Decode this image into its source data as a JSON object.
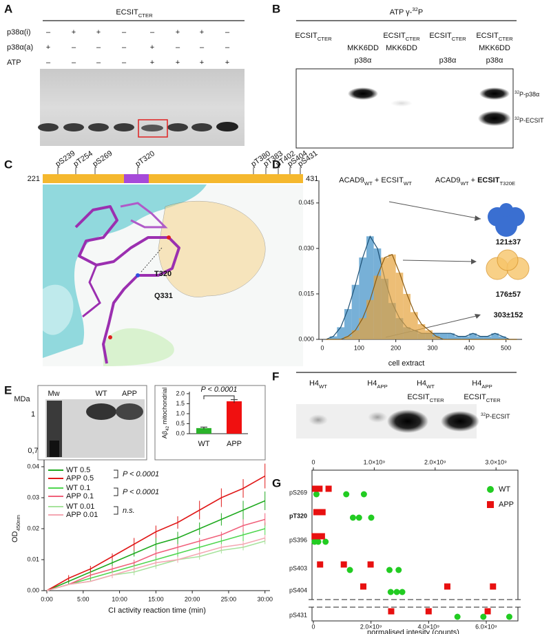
{
  "panel_a": {
    "label": "A",
    "title": {
      "text": "ECSIT",
      "sub": "CTER"
    },
    "rows": [
      {
        "name": "p38α(i)",
        "signs": [
          "–",
          "+",
          "+",
          "–",
          "–",
          "+",
          "+",
          "–"
        ]
      },
      {
        "name": "p38α(a)",
        "signs": [
          "+",
          "–",
          "–",
          "–",
          "+",
          "–",
          "–",
          "–"
        ]
      },
      {
        "name": "ATP",
        "signs": [
          "–",
          "–",
          "–",
          "–",
          "+",
          "+",
          "+",
          "+"
        ]
      }
    ]
  },
  "panel_b": {
    "label": "B",
    "title": {
      "text": "ATP γ-",
      "sup": "32",
      "tail": "P"
    },
    "lanes": [
      [
        {
          "text": "ECSIT",
          "sub": "CTER"
        },
        null,
        null
      ],
      [
        null,
        "MKK6DD",
        "p38α"
      ],
      [
        {
          "text": "ECSIT",
          "sub": "CTER"
        },
        "MKK6DD",
        null
      ],
      [
        {
          "text": "ECSIT",
          "sub": "CTER"
        },
        null,
        "p38α"
      ],
      [
        {
          "text": "ECSIT",
          "sub": "CTER"
        },
        "MKK6DD",
        "p38α"
      ]
    ],
    "band_labels": [
      {
        "sup": "32",
        "text": "P-p38α"
      },
      {
        "sup": "32",
        "text": "P-ECSIT"
      }
    ]
  },
  "panel_c": {
    "label": "C",
    "start": "221",
    "end": "431",
    "sites": [
      {
        "name": "pS239",
        "color": "#111111"
      },
      {
        "name": "pT254",
        "color": "#111111"
      },
      {
        "name": "pS269",
        "color": "#111111"
      },
      {
        "name": "pT320",
        "color": "#2aa04a"
      },
      {
        "name": "pT380",
        "color": "#111111"
      },
      {
        "name": "pT383",
        "color": "#111111"
      },
      {
        "name": "pT402",
        "color": "#111111"
      },
      {
        "name": "pS404",
        "color": "#111111"
      },
      {
        "name": "pS431",
        "color": "#111111"
      }
    ],
    "residues": [
      {
        "text": "T320",
        "color": "#2aa04a"
      },
      {
        "text": "Q331",
        "color": "#6a3fd0"
      }
    ]
  },
  "panel_d": {
    "label": "D"
  },
  "panel_e": {
    "label": "E",
    "gel_unit": "MDa",
    "gel_marks": [
      "1",
      "0,7"
    ],
    "gel_lanes": [
      "Mw",
      "WT",
      "APP"
    ]
  },
  "panel_f": {
    "label": "F",
    "title": "cell extract",
    "lanes": [
      [
        {
          "text": "H4",
          "sub": "WT"
        },
        null
      ],
      [
        {
          "text": "H4",
          "sub": "APP"
        },
        null
      ],
      [
        {
          "text": "H4",
          "sub": "WT"
        },
        {
          "text": "ECSIT",
          "sub": "CTER"
        }
      ],
      [
        {
          "text": "H4",
          "sub": "APP"
        },
        {
          "text": "ECSIT",
          "sub": "CTER"
        }
      ]
    ],
    "band_label": {
      "sup": "32",
      "text": "P-ECSIT"
    }
  },
  "panel_g": {
    "label": "G"
  },
  "chart_data": [
    {
      "type": "histogram",
      "bins": [
        0,
        20,
        40,
        60,
        80,
        100,
        120,
        140,
        160,
        180,
        200,
        220,
        240,
        260,
        280,
        300,
        320,
        340,
        360,
        380,
        400,
        420,
        440,
        460,
        480,
        500,
        520,
        540
      ],
      "series": [
        {
          "name": {
            "text": "ACAD9",
            "sub": "WT",
            "mid": " + ",
            "bold": "ECSIT",
            "sub2": "T320E"
          },
          "color": "#3d8ec6",
          "values": [
            0,
            0.001,
            0.004,
            0.01,
            0.018,
            0.027,
            0.034,
            0.03,
            0.02,
            0.012,
            0.007,
            0.004,
            0.003,
            0.002,
            0.002,
            0.002,
            0.002,
            0.002,
            0.001,
            0.001,
            0.002,
            0.001,
            0.001,
            0.002,
            0.001,
            0,
            0
          ]
        },
        {
          "name": {
            "text": "ACAD9",
            "sub": "WT",
            "mid": " + ECSIT",
            "sub2": "WT"
          },
          "color": "#e6a23c",
          "values": [
            0,
            0,
            0,
            0.001,
            0.003,
            0.007,
            0.013,
            0.021,
            0.027,
            0.028,
            0.022,
            0.015,
            0.009,
            0.005,
            0.003,
            0.001,
            0,
            0,
            0,
            0,
            0,
            0,
            0,
            0,
            0,
            0,
            0
          ]
        }
      ],
      "xlim": [
        0,
        540
      ],
      "xticks": [
        0,
        100,
        200,
        300,
        400,
        500
      ],
      "ylim": [
        0,
        0.052
      ],
      "yticks": [
        {
          "value": 0,
          "label": "0.000"
        },
        0.015,
        {
          "value": 0.03,
          "label": "0.030"
        },
        0.045
      ],
      "annotations": [
        {
          "text": "121±37",
          "color": "#2e6fb5"
        },
        {
          "text": "176±57",
          "color": "#e0a030"
        },
        {
          "text": "303±152",
          "color": "#2e6fb5"
        }
      ]
    },
    {
      "type": "bar",
      "categories": [
        "WT",
        "APP"
      ],
      "values": [
        0.28,
        1.62
      ],
      "errors": [
        0.05,
        0.08
      ],
      "colors": [
        "#2bb32b",
        "#f01010"
      ],
      "ylim": [
        0,
        2.1
      ],
      "yticks": [
        {
          "value": 0,
          "label": "0.0"
        },
        0.5,
        {
          "value": 1,
          "label": "1.0"
        },
        1.5,
        {
          "value": 2,
          "label": "2.0"
        }
      ],
      "ylabel": {
        "text": "Aβ",
        "sub": "42",
        "tail": " mitochondrial"
      },
      "annotation": "P < 0.0001"
    },
    {
      "type": "line",
      "x": [
        0,
        3,
        6,
        9,
        12,
        15,
        18,
        21,
        24,
        27,
        30
      ],
      "series": [
        {
          "name": "WT 0.5",
          "color": "#1faa1f",
          "values": [
            0,
            0.003,
            0.006,
            0.009,
            0.012,
            0.015,
            0.017,
            0.02,
            0.023,
            0.026,
            0.029
          ],
          "errors": [
            0,
            0.001,
            0.001,
            0.001,
            0.001,
            0.002,
            0.002,
            0.002,
            0.002,
            0.003,
            0.003
          ]
        },
        {
          "name": "APP 0.5",
          "color": "#e01818",
          "values": [
            0,
            0.004,
            0.007,
            0.011,
            0.015,
            0.019,
            0.022,
            0.026,
            0.03,
            0.033,
            0.037
          ],
          "errors": [
            0,
            0.001,
            0.001,
            0.001,
            0.002,
            0.002,
            0.002,
            0.003,
            0.003,
            0.003,
            0.004
          ]
        },
        {
          "name": "WT 0.1",
          "color": "#4fd64f",
          "values": [
            0,
            0.002,
            0.004,
            0.006,
            0.008,
            0.01,
            0.012,
            0.014,
            0.016,
            0.018,
            0.02
          ],
          "errors": [
            0,
            0,
            0.001,
            0.001,
            0.001,
            0.001,
            0.001,
            0.001,
            0.001,
            0.002,
            0.002
          ]
        },
        {
          "name": "APP 0.1",
          "color": "#f0607a",
          "values": [
            0,
            0.002,
            0.005,
            0.007,
            0.009,
            0.012,
            0.014,
            0.016,
            0.018,
            0.021,
            0.023
          ],
          "errors": [
            0,
            0,
            0.001,
            0.001,
            0.001,
            0.001,
            0.001,
            0.001,
            0.001,
            0.002,
            0.002
          ]
        },
        {
          "name": "WT 0.01",
          "color": "#a6e39c",
          "values": [
            0,
            0.002,
            0.003,
            0.005,
            0.006,
            0.008,
            0.01,
            0.011,
            0.013,
            0.014,
            0.016
          ],
          "errors": [
            0,
            0,
            0,
            0.001,
            0.001,
            0.001,
            0.001,
            0.001,
            0.001,
            0.001,
            0.001
          ]
        },
        {
          "name": "APP 0.01",
          "color": "#f4a6b2",
          "values": [
            0,
            0.002,
            0.003,
            0.005,
            0.007,
            0.009,
            0.01,
            0.012,
            0.014,
            0.015,
            0.017
          ],
          "errors": [
            0,
            0,
            0,
            0.001,
            0.001,
            0.001,
            0.001,
            0.001,
            0.001,
            0.001,
            0.001
          ]
        }
      ],
      "xlim": [
        0,
        30.5
      ],
      "xticks": [
        {
          "value": 0,
          "label": "0:00"
        },
        {
          "value": 5,
          "label": "5:00"
        },
        {
          "value": 10,
          "label": "10:00"
        },
        {
          "value": 15,
          "label": "15:00"
        },
        {
          "value": 20,
          "label": "20:00"
        },
        {
          "value": 25,
          "label": "25:00"
        },
        {
          "value": 30,
          "label": "30:00"
        }
      ],
      "ylim": [
        0,
        0.042
      ],
      "yticks": [
        {
          "value": 0,
          "label": "0.00"
        },
        0.01,
        0.02,
        0.03,
        0.04
      ],
      "xlabel": "CI activity reaction time (min)",
      "ylabel": {
        "text": "OD",
        "sub": "450nm"
      },
      "annotations": [
        "P < 0.0001",
        "P < 0.0001",
        "n.s."
      ]
    },
    {
      "type": "scatter",
      "categories": [
        "pS269",
        "pT320",
        "pS396",
        "pS403",
        "pS404",
        "pS431"
      ],
      "category_colors": [
        "#111111",
        "#2aa04a",
        "#111111",
        "#111111",
        "#111111",
        "#111111"
      ],
      "series": [
        {
          "name": "WT",
          "color": "#22cc22",
          "values": [
            [
              50000000,
              540000000,
              830000000
            ],
            [
              650000000,
              750000000,
              950000000
            ],
            [
              20000000,
              80000000,
              200000000
            ],
            [
              600000000,
              1250000000,
              1400000000
            ],
            [
              1270000000,
              1370000000,
              1460000000
            ],
            [
              5000000000,
              5900000000,
              6800000000
            ]
          ]
        },
        {
          "name": "APP",
          "color": "#e81010",
          "values": [
            [
              30000000,
              100000000,
              250000000
            ],
            [
              50000000,
              100000000,
              150000000
            ],
            [
              20000000,
              80000000,
              140000000
            ],
            [
              110000000,
              500000000,
              940000000
            ],
            [
              820000000,
              2200000000,
              2950000000
            ],
            [
              2700000000,
              4000000000,
              6050000000
            ]
          ]
        }
      ],
      "xlim": [
        0,
        3360000000
      ],
      "xticks": [
        0,
        {
          "value": 1000000000,
          "label": "1.0×10⁹"
        },
        {
          "value": 2000000000,
          "label": "2.0×10⁹"
        },
        {
          "value": 3000000000,
          "label": "3.0×10⁹"
        }
      ],
      "x2lim": [
        0,
        7100000000
      ],
      "x2ticks": [
        0,
        {
          "value": 2000000000,
          "label": "2.0×10⁹"
        },
        {
          "value": 4000000000,
          "label": "4.0×10⁹"
        },
        {
          "value": 6000000000,
          "label": "6.0×10⁹"
        }
      ],
      "xlabel": "normalised intesity (counts)"
    }
  ]
}
